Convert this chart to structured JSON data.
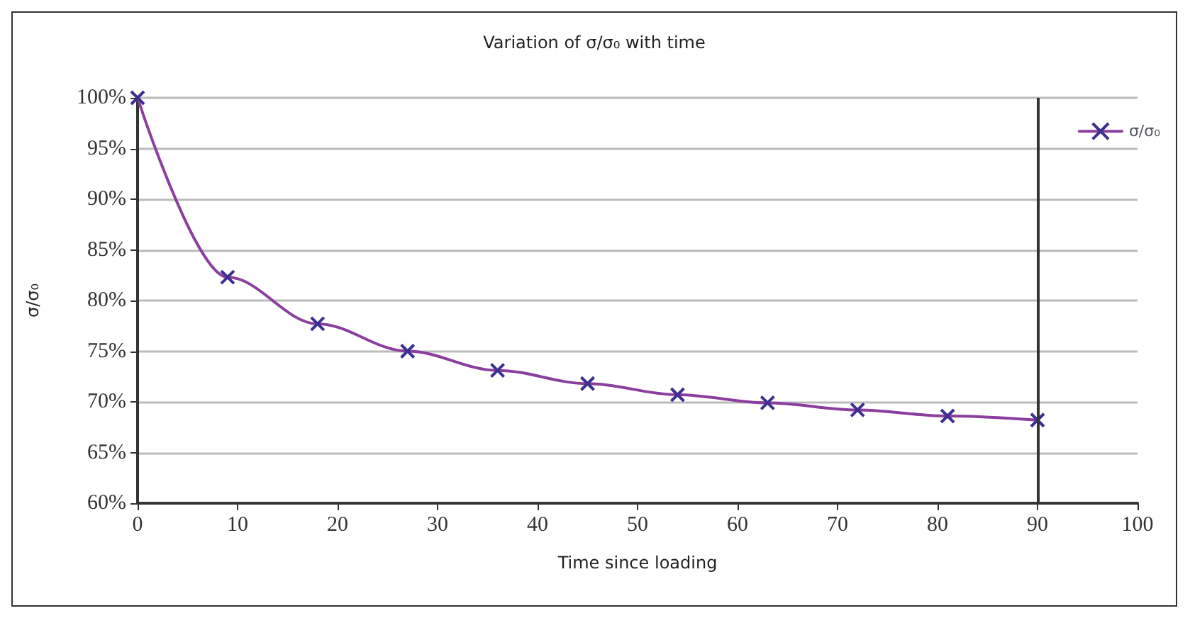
{
  "chart_data": {
    "type": "line",
    "title": "Variation of σ/σ₀ with time",
    "xlabel": "Time since loading",
    "ylabel": "σ/σ₀",
    "x": [
      0,
      9,
      18,
      27,
      36,
      45,
      54,
      63,
      72,
      81,
      90
    ],
    "series": [
      {
        "name": "σ/σ₀",
        "color": "#3b2f8f",
        "values": [
          100,
          82.3,
          77.7,
          75.0,
          73.1,
          71.8,
          70.7,
          69.9,
          69.2,
          68.6,
          68.2
        ]
      }
    ],
    "xlim": [
      0,
      100
    ],
    "xticks": [
      0,
      10,
      20,
      30,
      40,
      50,
      60,
      70,
      80,
      90,
      100
    ],
    "ylim": [
      60,
      100
    ],
    "yticks": [
      {
        "value": 60,
        "label": "60%"
      },
      {
        "value": 65,
        "label": "65%"
      },
      {
        "value": 70,
        "label": "70%"
      },
      {
        "value": 75,
        "label": "75%"
      },
      {
        "value": 80,
        "label": "80%"
      },
      {
        "value": 85,
        "label": "85%"
      },
      {
        "value": 90,
        "label": "90%"
      },
      {
        "value": 95,
        "label": "95%"
      },
      {
        "value": 100,
        "label": "100%"
      }
    ],
    "ref_lines": [
      {
        "axis": "x",
        "value": 90,
        "color": "#333333"
      }
    ],
    "grid": "y",
    "legend": "top right",
    "marker": "cross",
    "line_style": "solid"
  }
}
